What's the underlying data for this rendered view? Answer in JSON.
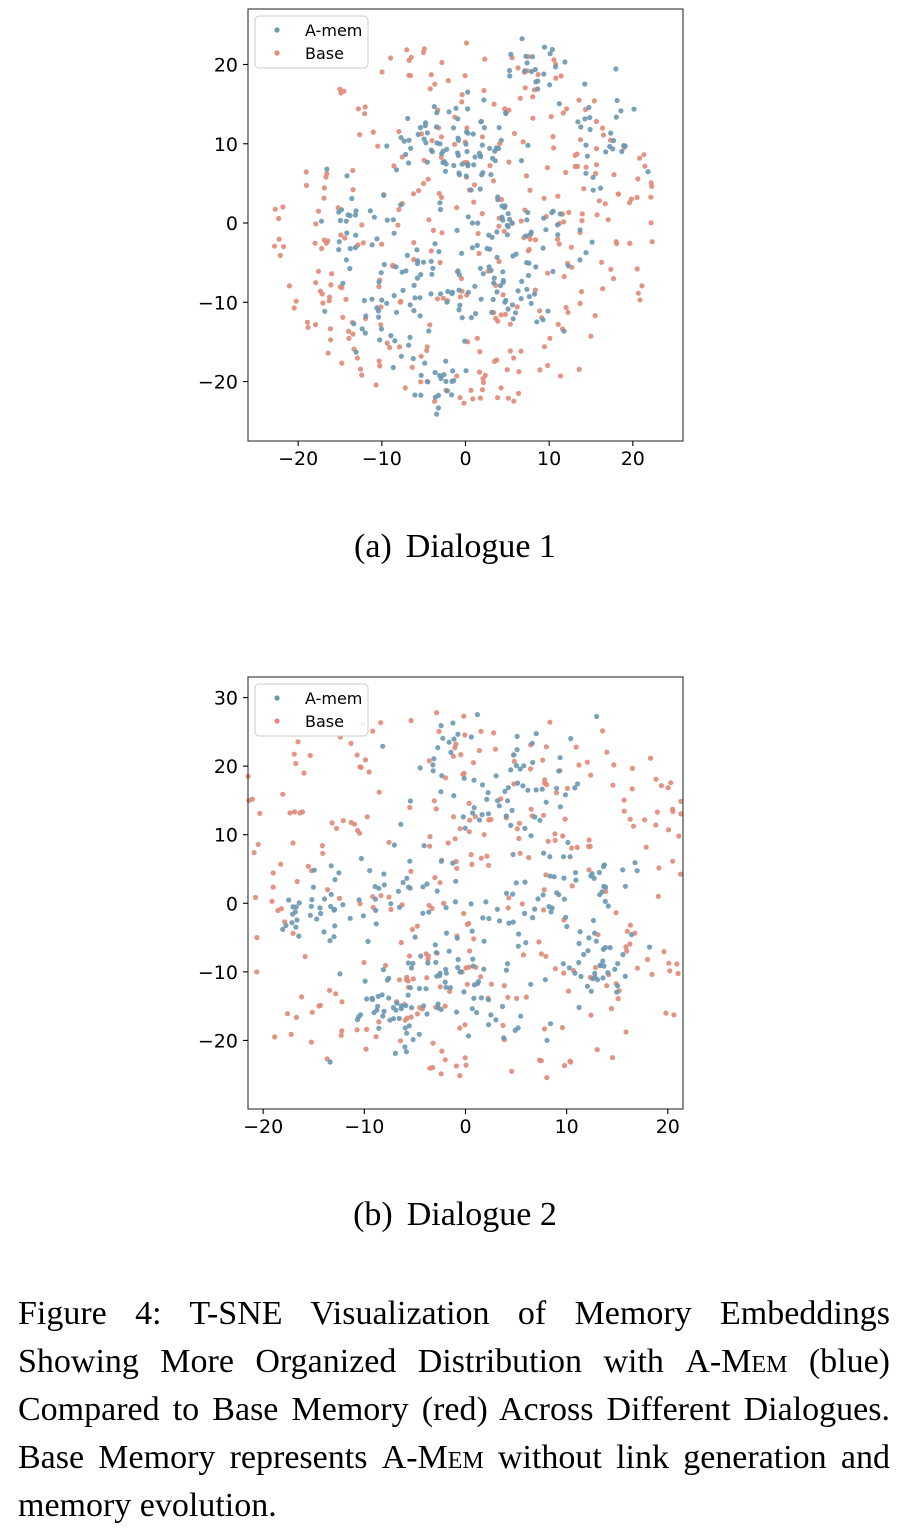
{
  "figure_caption": {
    "label": "Figure 4:",
    "text_1": "T-SNE Visualization of Memory Embeddings Showing More Organized Distribution with ",
    "system_1": "A-Mem",
    "text_2": " (blue) Compared to Base Memory (red) Across Different Dialogues. Base Memory represents ",
    "system_2": "A-Mem",
    "text_3": " without link generation and memory evolution."
  },
  "chart_data": [
    {
      "type": "scatter",
      "subcaption_tag": "(a)",
      "subcaption_text": "Dialogue 1",
      "xlim": [
        -26,
        26
      ],
      "ylim": [
        -27.5,
        27
      ],
      "xticks": [
        -20,
        -10,
        0,
        10,
        20
      ],
      "yticks": [
        -20,
        -10,
        0,
        10,
        20
      ],
      "xtick_labels": [
        "−20",
        "−10",
        "0",
        "10",
        "20"
      ],
      "ytick_labels": [
        "−20",
        "−10",
        "0",
        "10",
        "20"
      ],
      "legend_position": "upper-left",
      "grid": false,
      "series": [
        {
          "name": "A-mem",
          "color": "#6a98b0",
          "n_points": 330,
          "seed": 11,
          "clusters": [
            [
              -6,
              -6,
              5,
              4,
              0.22
            ],
            [
              2,
              10,
              3,
              3,
              0.13
            ],
            [
              4,
              -8,
              4,
              3,
              0.12
            ],
            [
              -5,
              11,
              3,
              3,
              0.08
            ],
            [
              16,
              11,
              3,
              3,
              0.09
            ],
            [
              8,
              20,
              2,
              2,
              0.06
            ],
            [
              13,
              -3,
              2,
              2,
              0.05
            ],
            [
              -10,
              -12,
              3,
              3,
              0.08
            ],
            [
              6,
              1,
              3,
              2,
              0.07
            ],
            [
              -13,
              1,
              2,
              2,
              0.05
            ],
            [
              -3,
              -20,
              2,
              2,
              0.05
            ]
          ]
        },
        {
          "name": "Base",
          "color": "#e08a78",
          "n_points": 330,
          "seed": 29,
          "disk": [
            0,
            0,
            23.5
          ]
        }
      ]
    },
    {
      "type": "scatter",
      "subcaption_tag": "(b)",
      "subcaption_text": "Dialogue 2",
      "xlim": [
        -21.5,
        21.5
      ],
      "ylim": [
        -30,
        33
      ],
      "xticks": [
        -20,
        -10,
        0,
        10,
        20
      ],
      "yticks": [
        -20,
        -10,
        0,
        10,
        20,
        30
      ],
      "xtick_labels": [
        "−20",
        "−10",
        "0",
        "10",
        "20"
      ],
      "ytick_labels": [
        "−20",
        "−10",
        "0",
        "10",
        "20",
        "30"
      ],
      "legend_position": "upper-left",
      "grid": false,
      "series": [
        {
          "name": "A-mem",
          "color": "#6a98b0",
          "n_points": 330,
          "seed": 37,
          "clusters": [
            [
              2,
              18,
              5,
              4,
              0.25
            ],
            [
              -1,
              -12,
              5,
              4,
              0.2
            ],
            [
              -8,
              -16,
              3,
              3,
              0.1
            ],
            [
              11,
              2,
              3,
              3,
              0.1
            ],
            [
              -9,
              1,
              3,
              3,
              0.09
            ],
            [
              3,
              -2,
              3,
              3,
              0.08
            ],
            [
              -16,
              -2,
              1.5,
              2,
              0.05
            ],
            [
              12,
              -11,
              2,
              2,
              0.05
            ],
            [
              -3,
              5,
              2,
              2,
              0.04
            ],
            [
              14,
              -7,
              2,
              2,
              0.04
            ]
          ]
        },
        {
          "name": "Base",
          "color": "#e08a78",
          "n_points": 360,
          "seed": 53,
          "disk": [
            0,
            1,
            28
          ]
        }
      ]
    }
  ]
}
